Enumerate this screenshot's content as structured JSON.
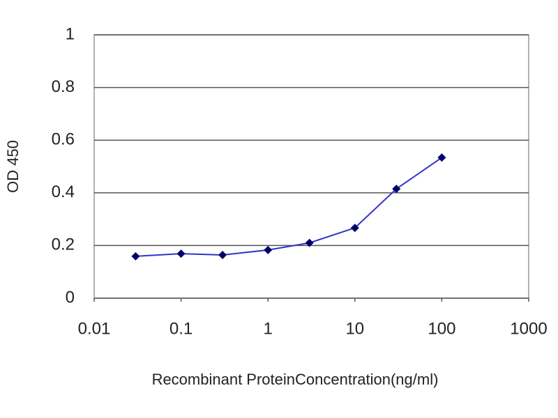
{
  "chart_data": {
    "type": "line",
    "x_label": "Recombinant ProteinConcentration(ng/ml)",
    "y_label": "OD 450",
    "x": [
      0.03,
      0.1,
      0.3,
      1,
      3,
      10,
      30,
      100
    ],
    "values": [
      0.159,
      0.169,
      0.164,
      0.183,
      0.21,
      0.267,
      0.415,
      0.534
    ],
    "color": "#3333cc",
    "marker_color": "#000066",
    "xscale": "log",
    "xlim": [
      0.01,
      1000
    ],
    "xticks": [
      0.01,
      0.1,
      1,
      10,
      100,
      1000
    ],
    "ylim": [
      0,
      1
    ],
    "yticks": [
      0,
      0.2,
      0.4,
      0.6,
      0.8,
      1
    ],
    "grid": true
  }
}
